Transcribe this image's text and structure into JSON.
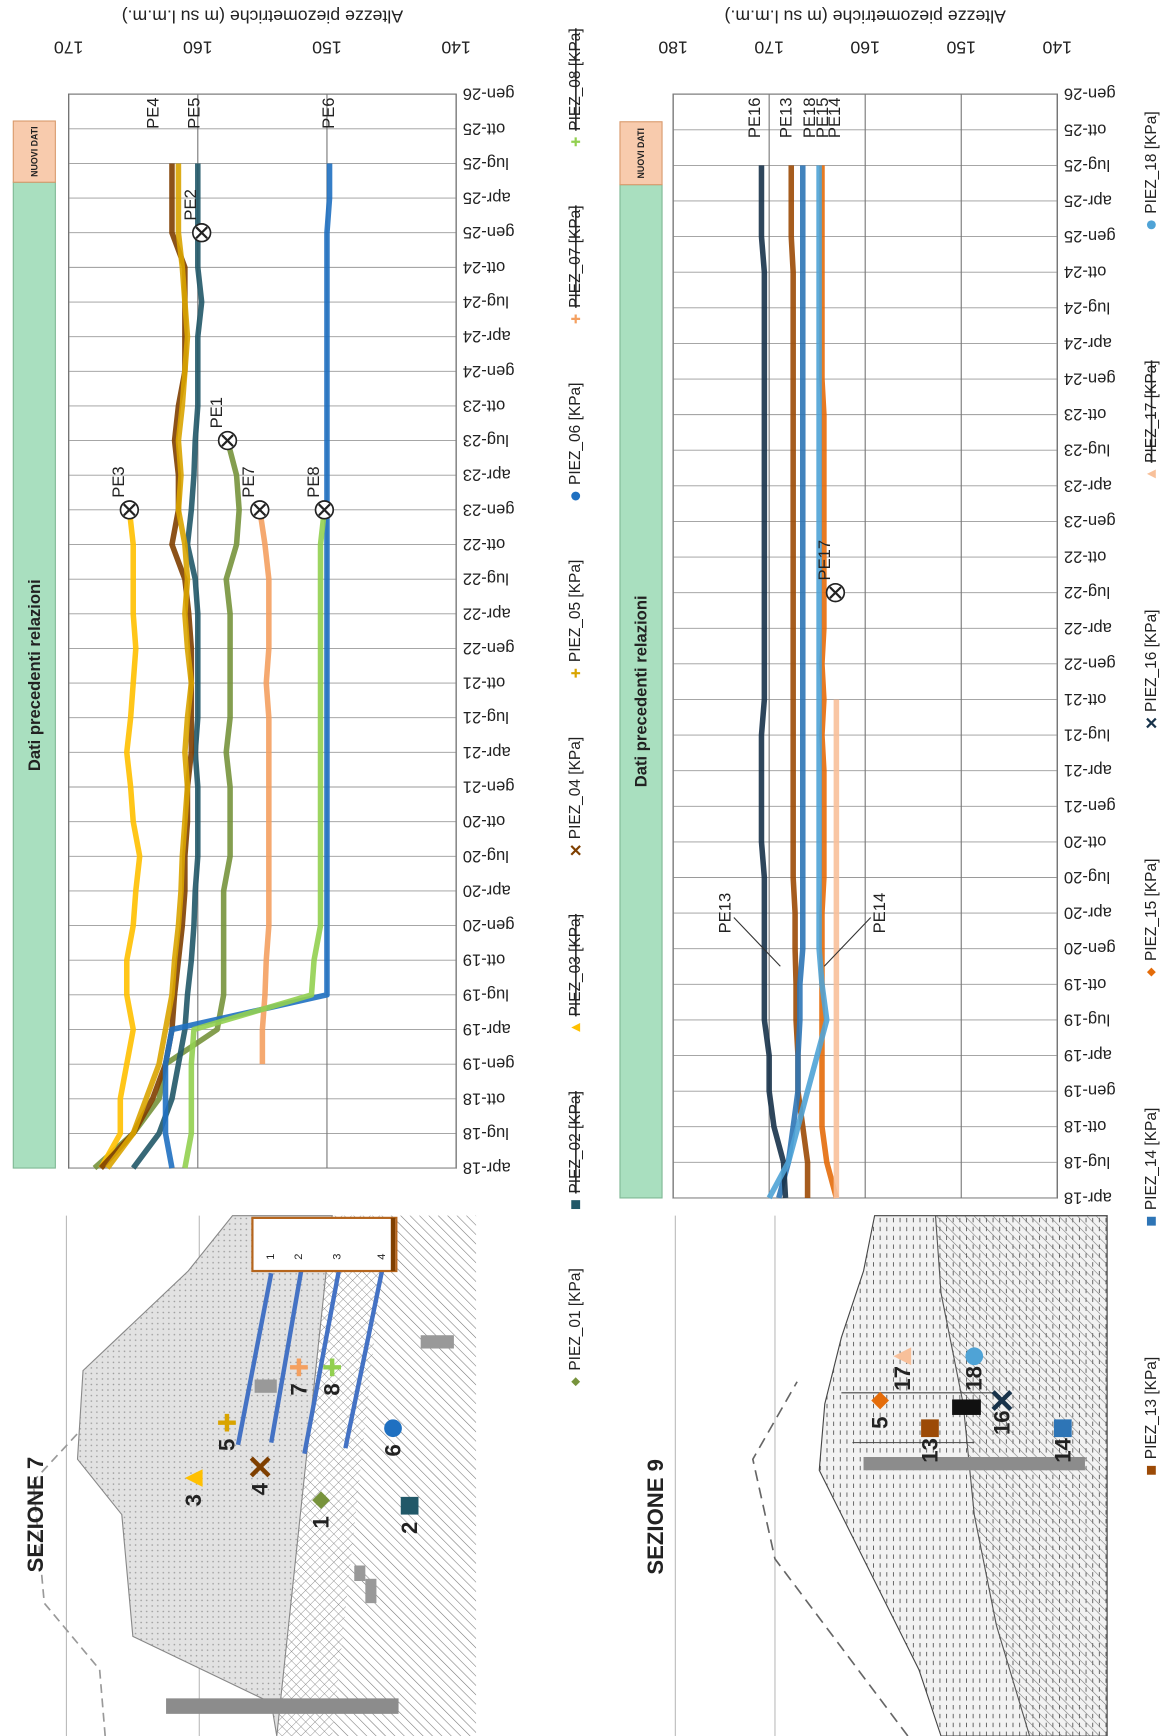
{
  "chart_data": [
    {
      "type": "line",
      "header": "Dati precedenti relazioni",
      "new_data_label": "NUOVI DATI",
      "ylabel": "Altezze piezometriche (m su l.m.m.)",
      "categories": [
        "apr-18",
        "lug-18",
        "ott-18",
        "gen-19",
        "apr-19",
        "lug-19",
        "ott-19",
        "gen-20",
        "apr-20",
        "lug-20",
        "ott-20",
        "gen-21",
        "apr-21",
        "lug-21",
        "ott-21",
        "gen-22",
        "apr-22",
        "lug-22",
        "ott-22",
        "gen-23",
        "apr-23",
        "lug-23",
        "ott-23",
        "gen-24",
        "apr-24",
        "lug-24",
        "ott-24",
        "gen-25",
        "apr-25",
        "lug-25",
        "ott-25",
        "gen-26"
      ],
      "ylim": [
        140,
        170
      ],
      "yticks": [
        140,
        150,
        160,
        170
      ],
      "grid": true,
      "series": [
        {
          "name": "PIEZ_01 [KPa]",
          "color": "#77933c",
          "marker": "diamond",
          "struck": false,
          "values": [
            168,
            165,
            163,
            162.5,
            158.5,
            158,
            158,
            158,
            158,
            157.5,
            157.5,
            157.5,
            157.8,
            157.5,
            157.5,
            157.5,
            157.5,
            157.8,
            157,
            156.8,
            157,
            157.7,
            null,
            null,
            null,
            null,
            null,
            null,
            null,
            null,
            null,
            null
          ]
        },
        {
          "name": "PIEZ_02 [KPa]",
          "color": "#215868",
          "marker": "square",
          "struck": true,
          "values": [
            165,
            163,
            162,
            161.5,
            161,
            160.8,
            160.5,
            160.3,
            160.2,
            160,
            160,
            160,
            160.2,
            160,
            160,
            160,
            160,
            160.2,
            160.8,
            160.5,
            160.3,
            160.2,
            160,
            160,
            160,
            159.7,
            160,
            160,
            160,
            160,
            null,
            null
          ]
        },
        {
          "name": "PIEZ_03 [KPa]",
          "color": "#ffc000",
          "marker": "triangle",
          "struck": true,
          "values": [
            167.5,
            166,
            166,
            165.5,
            165,
            165.5,
            165.5,
            165,
            164.8,
            164.5,
            165,
            165.2,
            165.5,
            165.2,
            165,
            164.8,
            165,
            165,
            165,
            165.3,
            null,
            null,
            null,
            null,
            null,
            null,
            null,
            null,
            null,
            null,
            null,
            null
          ]
        },
        {
          "name": "PIEZ_04 [KPa]",
          "color": "#7f3f00",
          "marker": "x",
          "struck": false,
          "values": [
            167.5,
            165,
            163.5,
            162.5,
            162,
            161.8,
            161.5,
            161.2,
            161,
            161,
            160.8,
            160.8,
            160.5,
            160.5,
            160.5,
            160.5,
            160.7,
            161,
            162,
            161.5,
            161.5,
            161.8,
            161.5,
            161,
            161,
            161,
            161,
            162,
            162,
            162,
            null,
            null
          ]
        },
        {
          "name": "PIEZ_05 [KPa]",
          "color": "#d9a400",
          "marker": "plus",
          "struck": false,
          "values": [
            167,
            165,
            164,
            163,
            162.5,
            162,
            161.8,
            161.5,
            161.3,
            161.2,
            161,
            160.8,
            161,
            160.8,
            160.5,
            160.8,
            161,
            160.8,
            161,
            161.5,
            161.3,
            161.5,
            161.2,
            161,
            160.8,
            161,
            161.2,
            161.5,
            161.5,
            161.5,
            null,
            null
          ]
        },
        {
          "name": "PIEZ_06 [KPa]",
          "color": "#1f70c1",
          "marker": "circle",
          "struck": false,
          "values": [
            162,
            162.5,
            162.5,
            162.5,
            162,
            150,
            150,
            150,
            150,
            150,
            150,
            150,
            150,
            150,
            150,
            150,
            150,
            150,
            150,
            150,
            150,
            150,
            150,
            150,
            150,
            150,
            150,
            150,
            149.8,
            149.8,
            null,
            null
          ]
        },
        {
          "name": "PIEZ_07 [KPa]",
          "color": "#f4a060",
          "marker": "plus",
          "struck": true,
          "values": [
            null,
            null,
            null,
            155,
            155,
            154.8,
            154.7,
            154.5,
            154.5,
            154.5,
            154.5,
            154.5,
            154.5,
            154.5,
            154.7,
            154.5,
            154.5,
            154.5,
            154.8,
            155.2,
            null,
            null,
            null,
            null,
            null,
            null,
            null,
            null,
            null,
            null,
            null,
            null
          ]
        },
        {
          "name": "PIEZ_08 [KPa]",
          "color": "#92d050",
          "marker": "plus",
          "struck": true,
          "values": [
            161,
            160.5,
            160.5,
            160.5,
            160.3,
            151.2,
            151,
            150.5,
            150.5,
            150.5,
            150.5,
            150.5,
            150.5,
            150.5,
            150.5,
            150.5,
            150.5,
            150.5,
            150.5,
            150.2,
            null,
            null,
            null,
            null,
            null,
            null,
            null,
            null,
            null,
            null,
            null,
            null
          ]
        }
      ],
      "annotations": [
        {
          "text": "PE4",
          "x": "gen-26",
          "y": 162.8,
          "cross": false
        },
        {
          "text": "PE5",
          "x": "gen-26",
          "y": 159.6,
          "cross": false
        },
        {
          "text": "PE6",
          "x": "gen-26",
          "y": 149.2,
          "cross": false
        },
        {
          "text": "PE2",
          "x": "gen-25",
          "y": 159.7,
          "cross": true
        },
        {
          "text": "PE1",
          "x": "lug-23",
          "y": 157.7,
          "cross": true
        },
        {
          "text": "PE3",
          "x": "gen-23",
          "y": 165.3,
          "cross": true
        },
        {
          "text": "PE7",
          "x": "gen-23",
          "y": 155.2,
          "cross": true
        },
        {
          "text": "PE8",
          "x": "gen-23",
          "y": 150.2,
          "cross": true
        }
      ],
      "section": {
        "title": "SEZIONE 7",
        "labels": [
          "3",
          "5",
          "4",
          "1",
          "2",
          "6",
          "7",
          "8",
          "1",
          "2",
          "3",
          "4"
        ]
      }
    },
    {
      "type": "line",
      "header": "Dati precedenti relazioni",
      "new_data_label": "NUOVI DATI",
      "ylabel": "Altezze piezometriche (m su l.m.m.)",
      "categories": [
        "apr-18",
        "lug-18",
        "ott-18",
        "gen-19",
        "apr-19",
        "lug-19",
        "ott-19",
        "gen-20",
        "apr-20",
        "lug-20",
        "ott-20",
        "gen-21",
        "apr-21",
        "lug-21",
        "ott-21",
        "gen-22",
        "apr-22",
        "lug-22",
        "ott-22",
        "gen-23",
        "apr-23",
        "lug-23",
        "ott-23",
        "gen-24",
        "apr-24",
        "lug-24",
        "ott-24",
        "gen-25",
        "apr-25",
        "lug-25",
        "ott-25",
        "gen-26"
      ],
      "ylim": [
        140,
        180
      ],
      "yticks": [
        140,
        150,
        160,
        170,
        180
      ],
      "grid": true,
      "series": [
        {
          "name": "PIEZ_13 [KPa]",
          "color": "#9c4a06",
          "marker": "square",
          "struck": false,
          "values": [
            166,
            166,
            166.5,
            167,
            167,
            167.2,
            167.2,
            167.3,
            167.3,
            167.5,
            167.5,
            167.5,
            167.5,
            167.5,
            167.5,
            167.5,
            167.5,
            167.5,
            167.5,
            167.5,
            167.5,
            167.5,
            167.5,
            167.5,
            167.5,
            167.5,
            167.5,
            167.7,
            167.7,
            167.7,
            null,
            null
          ]
        },
        {
          "name": "PIEZ_14 [KPa]",
          "color": "#2e75b6",
          "marker": "square",
          "struck": false,
          "values": [
            169,
            168,
            167.5,
            167,
            167,
            166.8,
            166.8,
            166.5,
            166.5,
            166.5,
            166.5,
            166.5,
            166.5,
            166.5,
            166.5,
            166.5,
            166.5,
            166.5,
            166.5,
            166.5,
            166.5,
            166.5,
            166.5,
            166.5,
            166.5,
            166.5,
            166.5,
            166.5,
            166.5,
            166.5,
            null,
            null
          ]
        },
        {
          "name": "PIEZ_15 [KPa]",
          "color": "#e46c0a",
          "marker": "diamond",
          "struck": false,
          "values": [
            163,
            164,
            164.5,
            164.5,
            164.5,
            164.5,
            164.5,
            164.5,
            164.5,
            164.3,
            164.3,
            164.3,
            164.3,
            164.5,
            164.3,
            164.5,
            164.3,
            164.3,
            164.3,
            164.3,
            164.3,
            164.3,
            164.3,
            164.5,
            164.5,
            164.5,
            164.5,
            164.5,
            164.5,
            164.5,
            null,
            null
          ]
        },
        {
          "name": "PIEZ_16 [KPa]",
          "color": "#17324a",
          "marker": "x",
          "struck": false,
          "values": [
            168.3,
            168.5,
            169.5,
            170,
            170,
            170.5,
            170.5,
            170.5,
            170.5,
            170.5,
            170.8,
            170.8,
            170.8,
            170.8,
            170.5,
            170.5,
            170.5,
            170.5,
            170.5,
            170.5,
            170.5,
            170.5,
            170.5,
            170.5,
            170.5,
            170.5,
            170.5,
            170.8,
            170.8,
            170.8,
            null,
            null
          ]
        },
        {
          "name": "PIEZ_17 [KPa]",
          "color": "#f8c09a",
          "marker": "triangle",
          "struck": true,
          "values": [
            163,
            163,
            163,
            163,
            163,
            163,
            163,
            163,
            163,
            163,
            163,
            163,
            163,
            163,
            163,
            null,
            null,
            null,
            null,
            null,
            null,
            null,
            null,
            null,
            null,
            null,
            null,
            null,
            null,
            null,
            null,
            null
          ]
        },
        {
          "name": "PIEZ_18 [KPa]",
          "color": "#4fa3d6",
          "marker": "circle",
          "struck": false,
          "values": [
            170,
            168,
            167,
            166,
            165,
            164,
            164.5,
            164.8,
            164.8,
            164.8,
            164.8,
            164.8,
            164.8,
            164.8,
            164.8,
            164.8,
            164.8,
            164.8,
            164.8,
            164.8,
            164.8,
            164.8,
            164.8,
            164.8,
            164.8,
            164.8,
            164.8,
            164.8,
            164.8,
            164.8,
            null,
            null
          ]
        }
      ],
      "annotations": [
        {
          "text": "PE16",
          "x": "gen-26",
          "y": 170.6,
          "cross": false
        },
        {
          "text": "PE13",
          "x": "gen-26",
          "y": 167.3,
          "cross": false
        },
        {
          "text": "PE18",
          "x": "gen-26",
          "y": 164.9,
          "cross": false
        },
        {
          "text": "PE15",
          "x": "gen-26",
          "y": 163.5,
          "cross": false
        },
        {
          "text": "PE14",
          "x": "gen-26",
          "y": 162.3,
          "cross": false
        },
        {
          "text": "PE17",
          "x": "lug-22",
          "y": 163.1,
          "cross": true
        },
        {
          "text": "PE13",
          "x": "apr-20",
          "y": 174.6,
          "cross": false
        },
        {
          "text": "PE14",
          "x": "apr-20",
          "y": 158.5,
          "cross": false
        }
      ],
      "section": {
        "title": "SEZIONE 9",
        "labels": [
          "5",
          "17",
          "13",
          "18",
          "16",
          "14"
        ]
      }
    }
  ]
}
